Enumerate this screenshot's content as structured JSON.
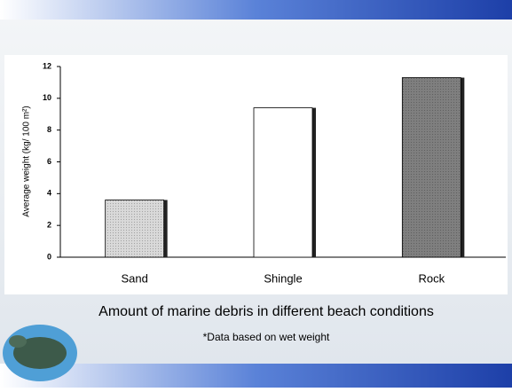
{
  "chart_data": {
    "type": "bar",
    "y_label": "Average weight (kg/ 100 m²)",
    "categories": [
      "Sand",
      "Shingle",
      "Rock"
    ],
    "values": [
      3.6,
      9.4,
      11.3
    ],
    "colors": [
      "#d9d9d9",
      "#ffffff",
      "#7f7f7f"
    ],
    "ylim": [
      0,
      12
    ],
    "yticks": [
      0,
      2,
      4,
      6,
      8,
      10,
      12
    ],
    "caption": "Amount of marine debris in different beach conditions",
    "note": "*Data based on wet weight"
  }
}
